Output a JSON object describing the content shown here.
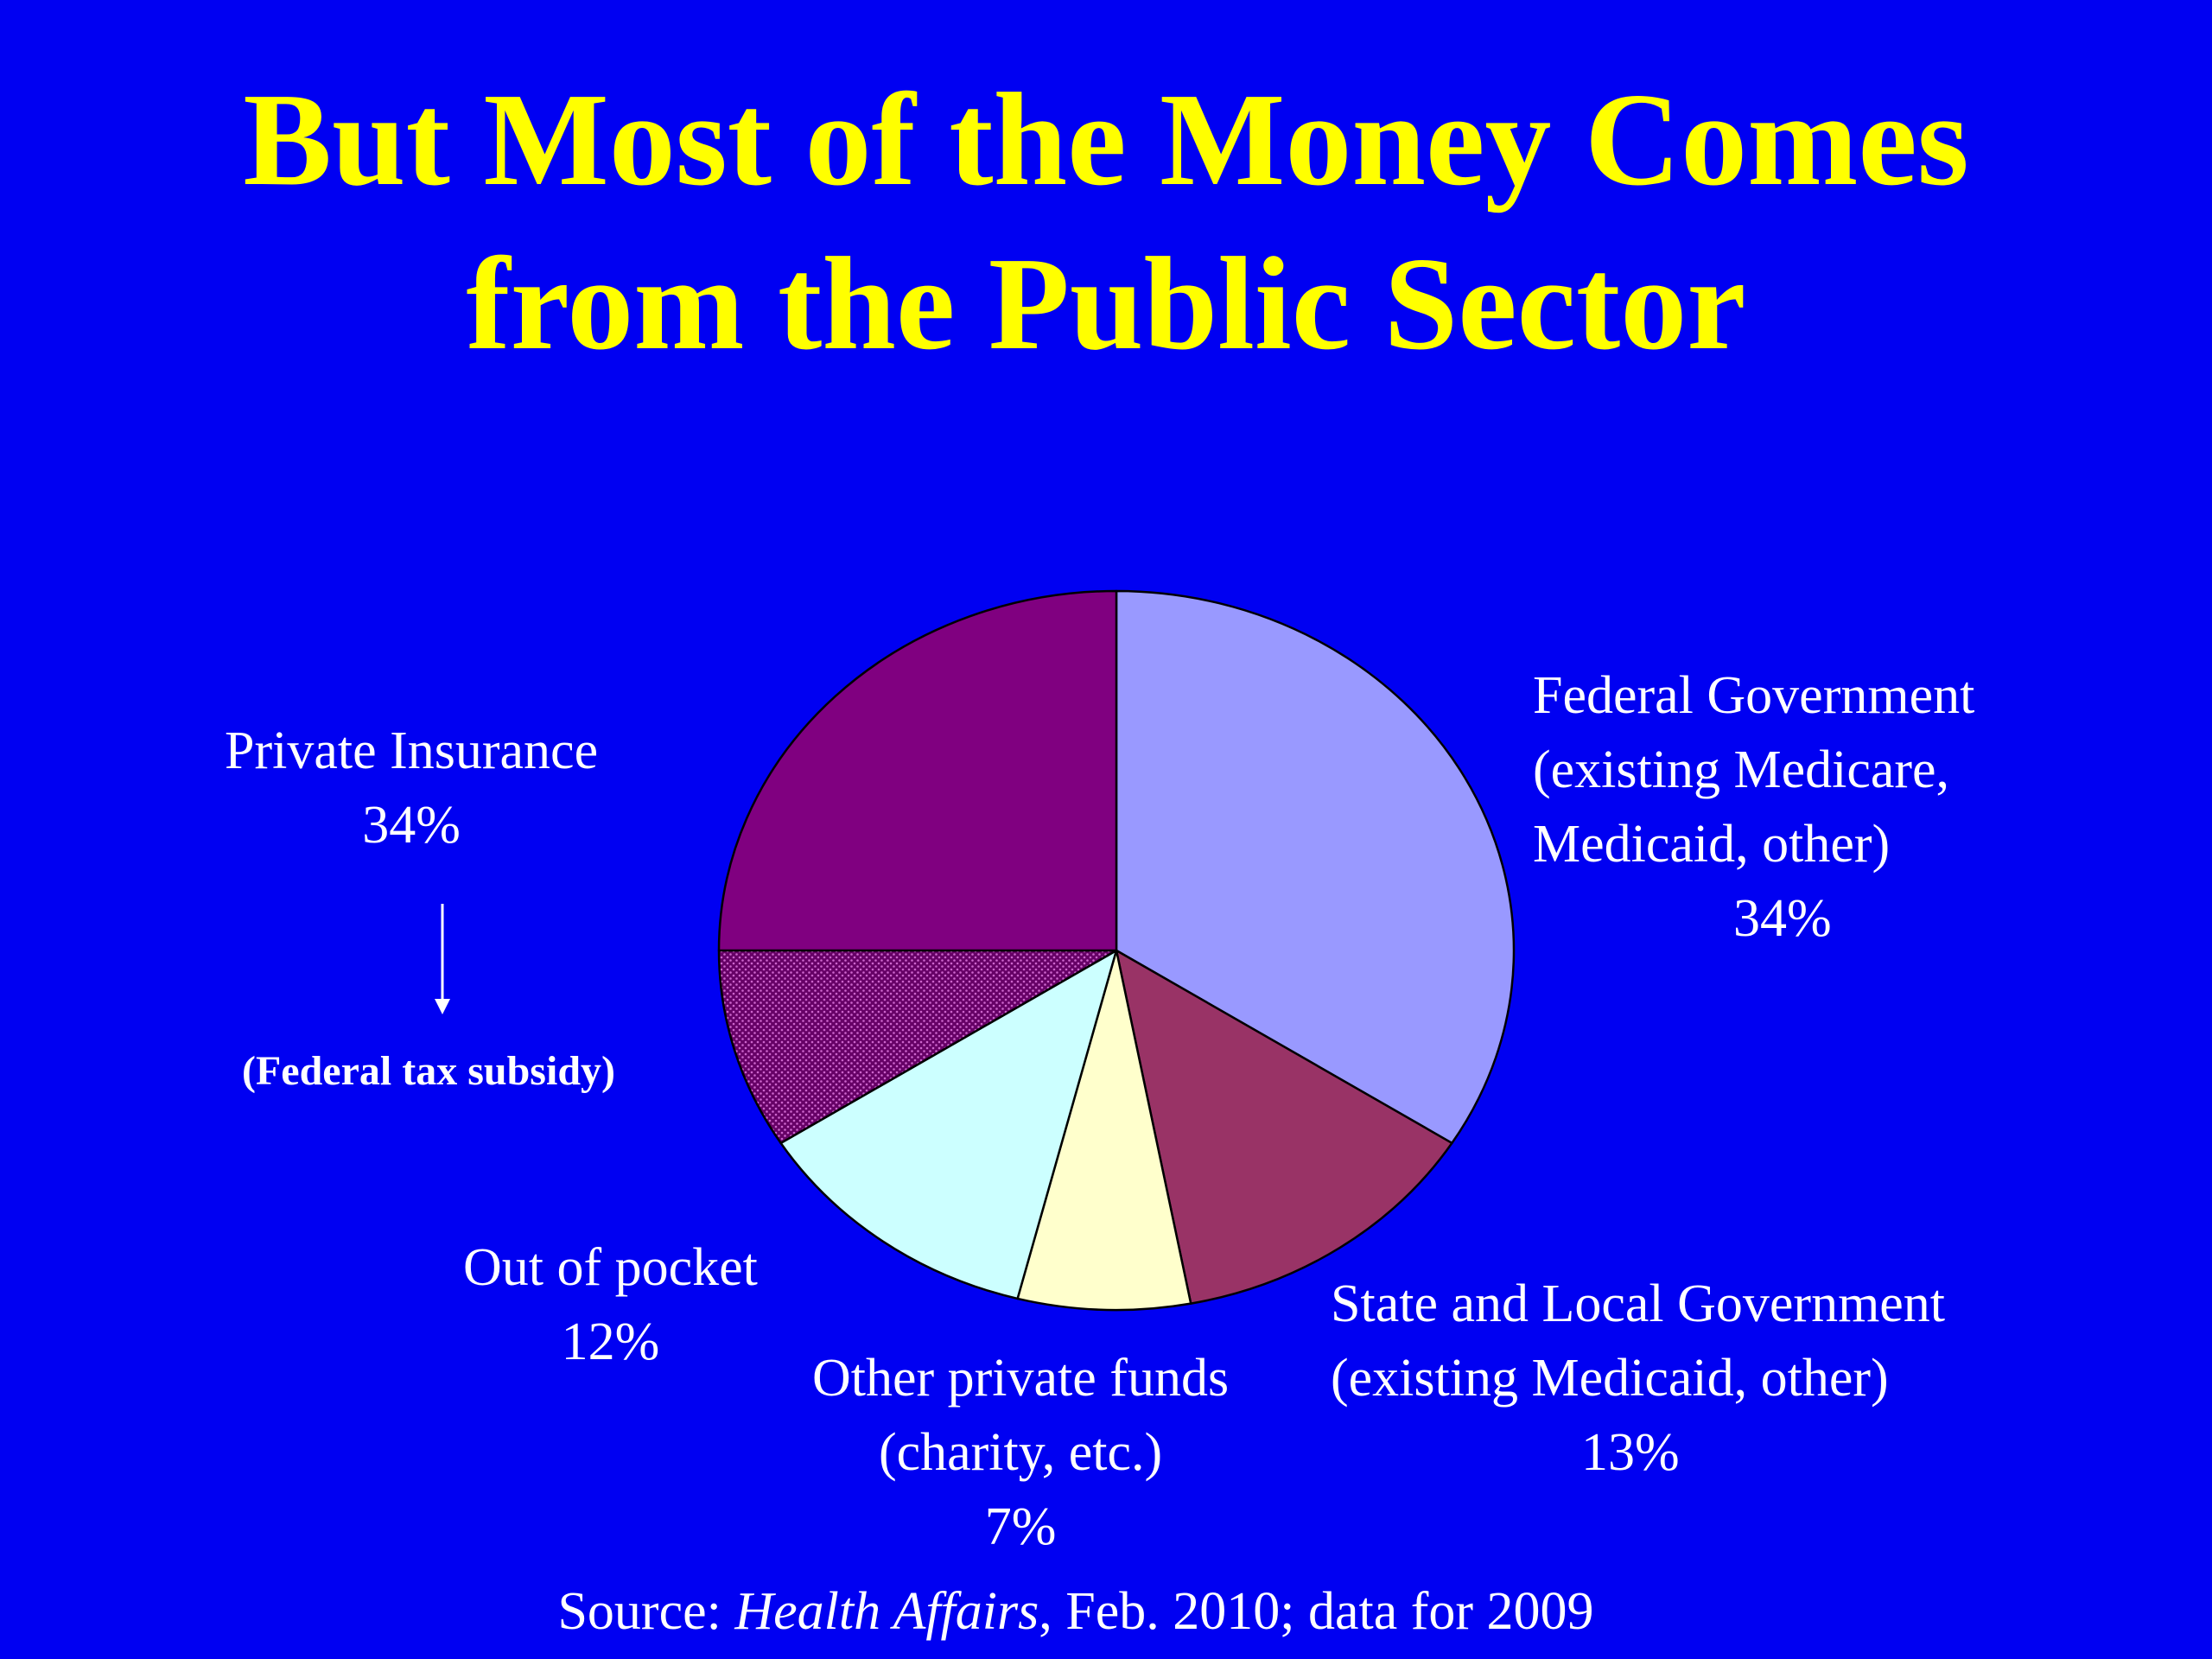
{
  "slide": {
    "title_line1": "But Most of the Money Comes",
    "title_line2": "from the Public Sector",
    "source_prefix": "Source: ",
    "source_publication": "Health Affairs",
    "source_suffix": ", Feb. 2010; data for 2009",
    "subsidy_note": "(Federal tax subsidy)",
    "colors": {
      "background": "#0000f2",
      "title": "#ffff00",
      "text": "#ffffff"
    }
  },
  "chart_data": {
    "type": "pie",
    "title": "",
    "start_angle_deg": 0,
    "direction": "clockwise",
    "slices": [
      {
        "key": "federal",
        "lines": [
          "Federal Government",
          "(existing Medicare,",
          "Medicaid, other)"
        ],
        "percent_label": "34%",
        "value": 34,
        "color": "#9999ff",
        "pattern": "solid"
      },
      {
        "key": "state",
        "lines": [
          "State and Local Government",
          "(existing Medicaid, other)"
        ],
        "percent_label": "13%",
        "value": 13,
        "color": "#993366",
        "pattern": "solid"
      },
      {
        "key": "other",
        "lines": [
          "Other private funds",
          "(charity, etc.)"
        ],
        "percent_label": "7%",
        "value": 7,
        "color": "#ffffcc",
        "pattern": "solid"
      },
      {
        "key": "oop",
        "lines": [
          "Out of pocket"
        ],
        "percent_label": "12%",
        "value": 12,
        "color": "#ccffff",
        "pattern": "solid"
      },
      {
        "key": "private_subsidy",
        "lines": [],
        "percent_label": "",
        "value": 9,
        "color": "#660066",
        "pattern": "dotted"
      },
      {
        "key": "private",
        "lines": [
          "Private Insurance"
        ],
        "percent_label": "34%",
        "value": 25,
        "color": "#800080",
        "pattern": "solid"
      }
    ]
  }
}
